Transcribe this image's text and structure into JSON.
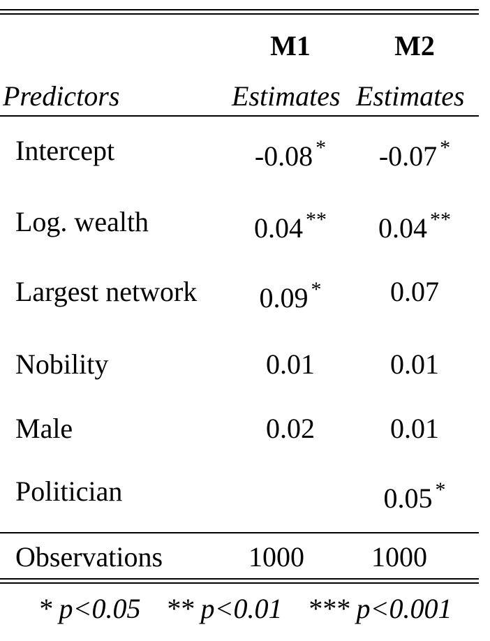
{
  "table": {
    "columns": [
      {
        "model": "M1",
        "estimate_header": "Estimates"
      },
      {
        "model": "M2",
        "estimate_header": "Estimates"
      }
    ],
    "predictors_header": "Predictors",
    "rows": [
      {
        "label": "Intercept",
        "m1": "-0.08",
        "m1_sig": "*",
        "m2": "-0.07",
        "m2_sig": "*"
      },
      {
        "label": "Log. wealth",
        "m1": "0.04",
        "m1_sig": "**",
        "m2": "0.04",
        "m2_sig": "**"
      },
      {
        "label": "Largest network",
        "m1": "0.09",
        "m1_sig": "*",
        "m2": "0.07",
        "m2_sig": ""
      },
      {
        "label": "Nobility",
        "m1": "0.01",
        "m1_sig": "",
        "m2": "0.01",
        "m2_sig": ""
      },
      {
        "label": "Male",
        "m1": "0.02",
        "m1_sig": "",
        "m2": "0.01",
        "m2_sig": ""
      },
      {
        "label": "Politician",
        "m1": "",
        "m1_sig": "",
        "m2": "0.05",
        "m2_sig": "*"
      }
    ],
    "observations": {
      "label": "Observations",
      "m1": "1000",
      "m2": "1000"
    },
    "footnote": [
      "* p<0.05",
      "** p<0.01",
      "*** p<0.001"
    ]
  }
}
